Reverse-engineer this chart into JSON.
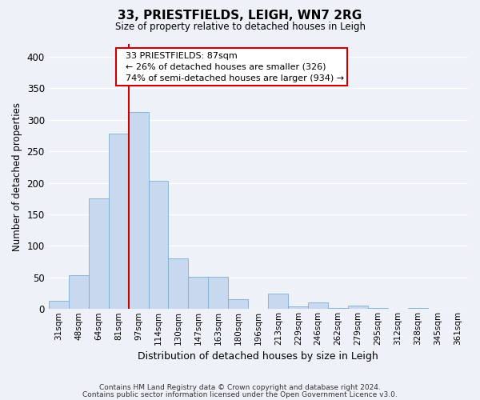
{
  "title": "33, PRIESTFIELDS, LEIGH, WN7 2RG",
  "subtitle": "Size of property relative to detached houses in Leigh",
  "xlabel": "Distribution of detached houses by size in Leigh",
  "ylabel": "Number of detached properties",
  "footer_line1": "Contains HM Land Registry data © Crown copyright and database right 2024.",
  "footer_line2": "Contains public sector information licensed under the Open Government Licence v3.0.",
  "bar_labels": [
    "31sqm",
    "48sqm",
    "64sqm",
    "81sqm",
    "97sqm",
    "114sqm",
    "130sqm",
    "147sqm",
    "163sqm",
    "180sqm",
    "196sqm",
    "213sqm",
    "229sqm",
    "246sqm",
    "262sqm",
    "279sqm",
    "295sqm",
    "312sqm",
    "328sqm",
    "345sqm",
    "361sqm"
  ],
  "bar_values": [
    13,
    54,
    175,
    278,
    312,
    203,
    80,
    51,
    51,
    16,
    0,
    25,
    4,
    10,
    2,
    5,
    1,
    0,
    2,
    0,
    0
  ],
  "bar_color": "#c8d8ee",
  "bar_edge_color": "#7baed4",
  "annotation_title": "33 PRIESTFIELDS: 87sqm",
  "annotation_line1": "← 26% of detached houses are smaller (326)",
  "annotation_line2": "74% of semi-detached houses are larger (934) →",
  "vline_color": "#cc0000",
  "ylim": [
    0,
    420
  ],
  "yticks": [
    0,
    50,
    100,
    150,
    200,
    250,
    300,
    350,
    400
  ],
  "bg_color": "#eef2f8",
  "grid_color": "#ffffff"
}
